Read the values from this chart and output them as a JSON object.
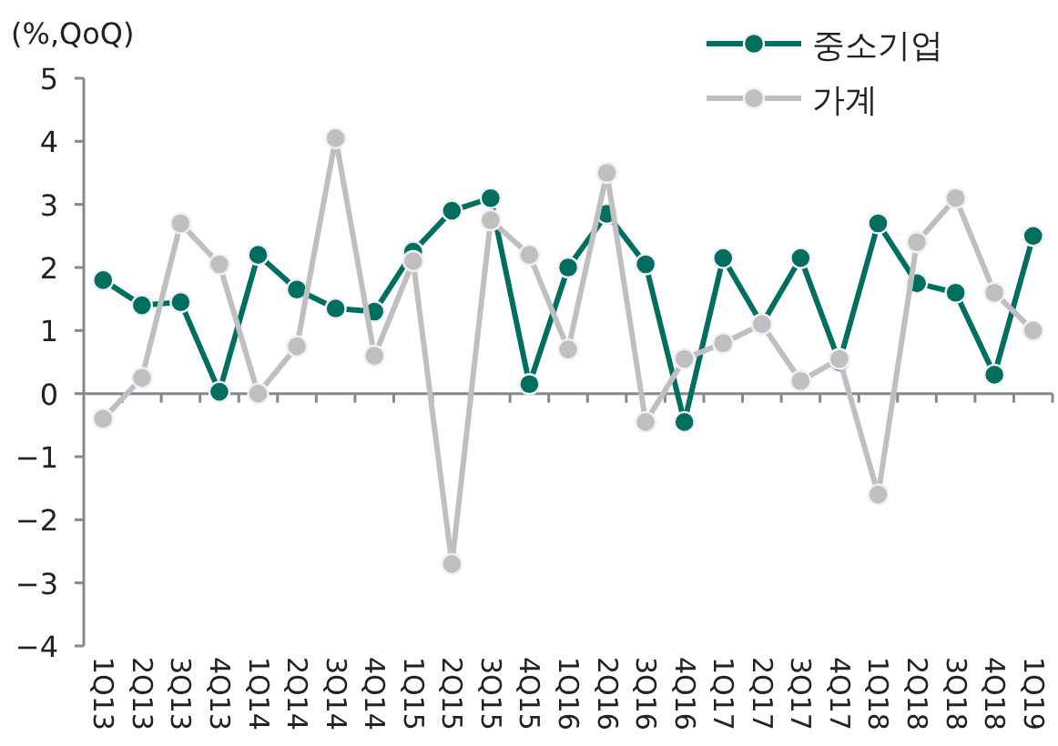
{
  "chart_data": {
    "type": "line",
    "ylabel": "(%,QoQ)",
    "categories": [
      "1Q13",
      "2Q13",
      "3Q13",
      "4Q13",
      "1Q14",
      "2Q14",
      "3Q14",
      "4Q14",
      "1Q15",
      "2Q15",
      "3Q15",
      "4Q15",
      "1Q16",
      "2Q16",
      "3Q16",
      "4Q16",
      "1Q17",
      "2Q17",
      "3Q17",
      "4Q17",
      "1Q18",
      "2Q18",
      "3Q18",
      "4Q18",
      "1Q19"
    ],
    "series": [
      {
        "name": "중소기업",
        "color": "#006f5f",
        "values": [
          1.8,
          1.4,
          1.45,
          0.03,
          2.2,
          1.65,
          1.35,
          1.3,
          2.25,
          2.9,
          3.1,
          0.15,
          2.0,
          2.85,
          2.05,
          -0.45,
          2.15,
          1.1,
          2.15,
          0.5,
          2.7,
          1.75,
          1.6,
          0.3,
          2.5
        ]
      },
      {
        "name": "가계",
        "color": "#bfbfbf",
        "values": [
          -0.4,
          0.25,
          2.7,
          2.05,
          0.0,
          0.75,
          4.05,
          0.6,
          2.1,
          -2.7,
          2.75,
          2.2,
          0.7,
          3.5,
          -0.45,
          0.55,
          0.8,
          1.1,
          0.2,
          0.55,
          -1.6,
          2.4,
          3.1,
          1.6,
          1.0
        ]
      }
    ],
    "ylim": [
      -4,
      5
    ],
    "yticks": [
      -4,
      -3,
      -2,
      -1,
      0,
      1,
      2,
      3,
      4,
      5
    ],
    "marker": "circle",
    "legend": "top right"
  }
}
